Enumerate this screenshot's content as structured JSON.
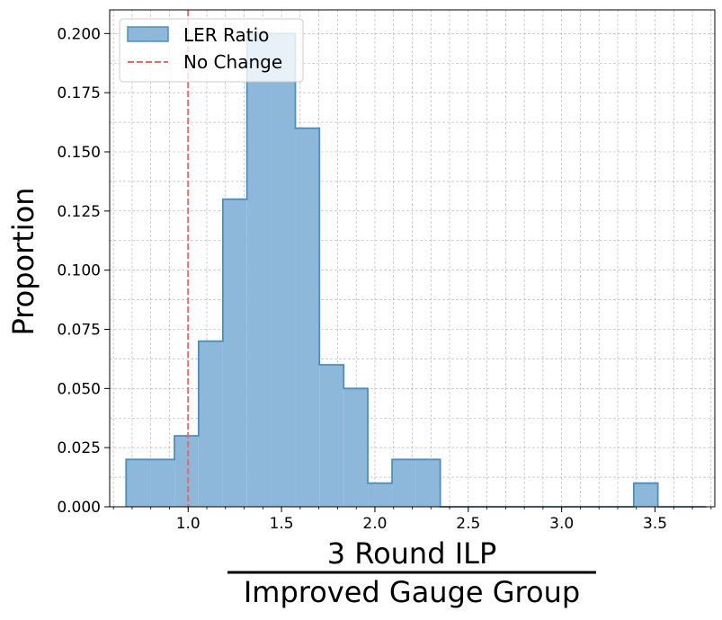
{
  "chart_data": {
    "type": "histogram",
    "ylabel": "Proportion",
    "xlabel_numerator": "3 Round ILP",
    "xlabel_denominator": "Improved Gauge Group",
    "xlim": [
      0.58,
      3.82
    ],
    "ylim": [
      0,
      0.21
    ],
    "xticks": [
      "1.0",
      "1.5",
      "2.0",
      "2.5",
      "3.0",
      "3.5"
    ],
    "yticks": [
      "0.000",
      "0.025",
      "0.050",
      "0.075",
      "0.100",
      "0.125",
      "0.150",
      "0.175",
      "0.200"
    ],
    "grid": true,
    "legend_position": "top-left",
    "legend": [
      {
        "label": "LER Ratio",
        "kind": "patch"
      },
      {
        "label": "No Change",
        "kind": "dashed-line"
      }
    ],
    "bins": [
      {
        "x0": 0.668,
        "x1": 0.797,
        "value": 0.02
      },
      {
        "x0": 0.797,
        "x1": 0.927,
        "value": 0.02
      },
      {
        "x0": 0.927,
        "x1": 1.056,
        "value": 0.03
      },
      {
        "x0": 1.056,
        "x1": 1.186,
        "value": 0.07
      },
      {
        "x0": 1.186,
        "x1": 1.315,
        "value": 0.13
      },
      {
        "x0": 1.315,
        "x1": 1.444,
        "value": 0.2
      },
      {
        "x0": 1.444,
        "x1": 1.574,
        "value": 0.2
      },
      {
        "x0": 1.574,
        "x1": 1.703,
        "value": 0.16
      },
      {
        "x0": 1.703,
        "x1": 1.833,
        "value": 0.06
      },
      {
        "x0": 1.833,
        "x1": 1.962,
        "value": 0.05
      },
      {
        "x0": 1.962,
        "x1": 2.092,
        "value": 0.01
      },
      {
        "x0": 2.092,
        "x1": 2.221,
        "value": 0.02
      },
      {
        "x0": 2.221,
        "x1": 2.35,
        "value": 0.02
      },
      {
        "x0": 2.35,
        "x1": 2.48,
        "value": 0.0
      },
      {
        "x0": 2.48,
        "x1": 2.609,
        "value": 0.0
      },
      {
        "x0": 2.609,
        "x1": 2.739,
        "value": 0.0
      },
      {
        "x0": 2.739,
        "x1": 2.868,
        "value": 0.0
      },
      {
        "x0": 2.868,
        "x1": 2.998,
        "value": 0.0
      },
      {
        "x0": 2.998,
        "x1": 3.127,
        "value": 0.0
      },
      {
        "x0": 3.127,
        "x1": 3.256,
        "value": 0.0
      },
      {
        "x0": 3.256,
        "x1": 3.386,
        "value": 0.0
      },
      {
        "x0": 3.386,
        "x1": 3.515,
        "value": 0.01
      },
      {
        "x0": 3.515,
        "x1": 3.645,
        "value": 0.0
      },
      {
        "x0": 3.645,
        "x1": 3.774,
        "value": 0.0
      }
    ],
    "reference_line": {
      "x": 1.0,
      "label": "No Change"
    },
    "colors": {
      "bar_fill": "#8db8d9",
      "bar_edge": "#4a8fc4",
      "reference_line": "#ee6666",
      "grid": "#b0b0b0"
    }
  }
}
